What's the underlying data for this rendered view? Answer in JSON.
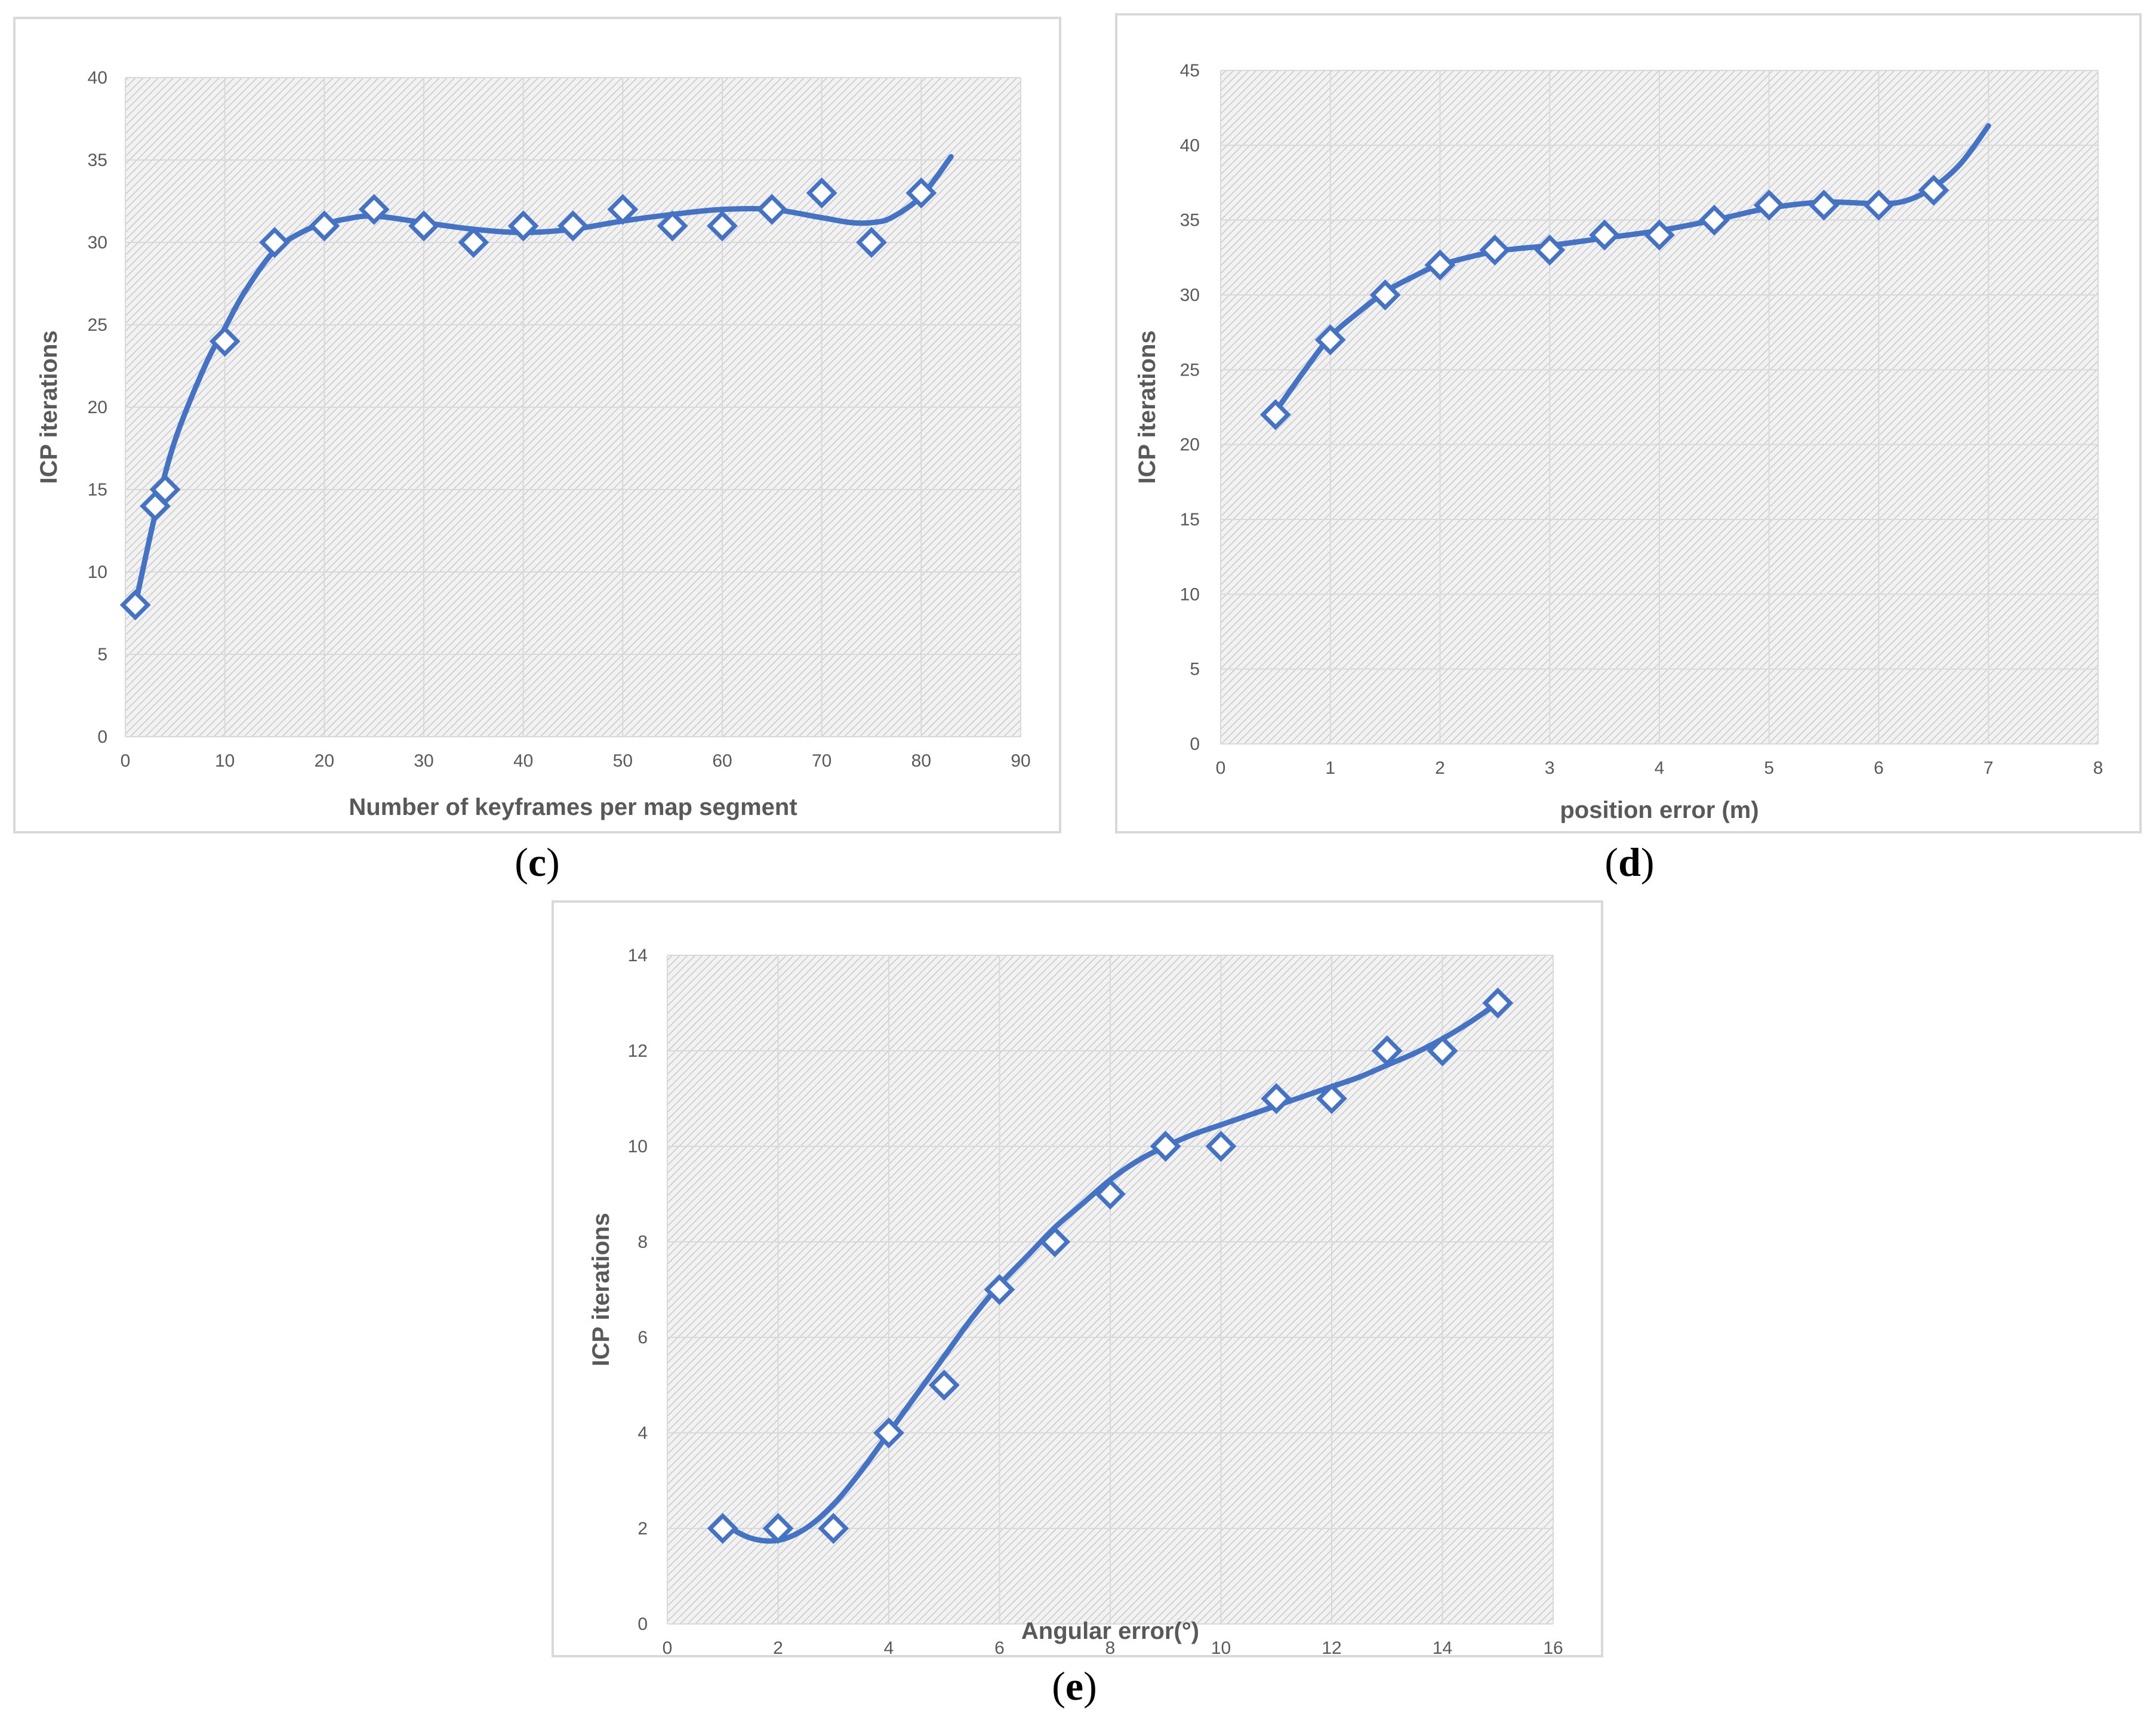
{
  "chart_data": [
    {
      "id": "c",
      "panel_label": "c",
      "type": "scatter",
      "xlabel": "Number of keyframes per map segment",
      "ylabel": "ICP iterations",
      "xlim": [
        0,
        90
      ],
      "ylim": [
        0,
        40
      ],
      "xticks": [
        0,
        10,
        20,
        30,
        40,
        50,
        60,
        70,
        80,
        90
      ],
      "yticks": [
        0,
        5,
        10,
        15,
        20,
        25,
        30,
        35,
        40
      ],
      "series": [
        {
          "name": "ICP iterations",
          "x": [
            1,
            3,
            4,
            10,
            15,
            20,
            25,
            30,
            35,
            40,
            45,
            50,
            55,
            60,
            65,
            70,
            75,
            80
          ],
          "y": [
            8,
            14,
            15,
            24,
            30,
            31,
            32,
            31,
            30,
            31,
            31,
            32,
            31,
            31,
            32,
            33,
            30,
            33
          ]
        }
      ],
      "trendline": {
        "x": [
          1,
          3,
          5,
          8,
          10,
          12,
          15,
          18,
          20,
          22,
          25,
          30,
          35,
          40,
          45,
          50,
          55,
          60,
          65,
          70,
          73,
          75,
          77,
          80,
          83
        ],
        "y": [
          8,
          13.5,
          18,
          22.5,
          24.8,
          27,
          29.5,
          30.7,
          31.1,
          31.4,
          31.6,
          31.2,
          30.8,
          30.6,
          30.8,
          31.3,
          31.7,
          32,
          32,
          31.5,
          31.2,
          31.2,
          31.5,
          32.8,
          35.2
        ]
      },
      "color": "#4472c4"
    },
    {
      "id": "d",
      "panel_label": "d",
      "type": "scatter",
      "xlabel": "position error (m)",
      "ylabel": "ICP iterations",
      "xlim": [
        0,
        8
      ],
      "ylim": [
        0,
        45
      ],
      "xticks": [
        0,
        1,
        2,
        3,
        4,
        5,
        6,
        7,
        8
      ],
      "yticks": [
        0,
        5,
        10,
        15,
        20,
        25,
        30,
        35,
        40,
        45
      ],
      "series": [
        {
          "name": "ICP iterations",
          "x": [
            0.5,
            1,
            1.5,
            2,
            2.5,
            3,
            3.5,
            4,
            4.5,
            5,
            5.5,
            6,
            6.5
          ],
          "y": [
            22,
            27,
            30,
            32,
            33,
            33,
            34,
            34,
            35,
            36,
            36,
            36,
            37
          ]
        }
      ],
      "trendline": {
        "x": [
          0.5,
          0.75,
          1,
          1.25,
          1.5,
          1.75,
          2,
          2.5,
          3,
          3.5,
          4,
          4.5,
          5,
          5.5,
          6,
          6.25,
          6.5,
          6.75,
          7
        ],
        "y": [
          22.2,
          24.8,
          27.2,
          28.8,
          30.2,
          31.2,
          32,
          32.9,
          33.3,
          33.8,
          34.3,
          35,
          35.8,
          36.2,
          36.1,
          36.3,
          37.2,
          38.8,
          41.3
        ]
      },
      "color": "#4472c4"
    },
    {
      "id": "e",
      "panel_label": "e",
      "type": "scatter",
      "xlabel": "Angular error(°)",
      "ylabel": "ICP iterations",
      "xlim": [
        0,
        16
      ],
      "ylim": [
        0,
        14
      ],
      "xticks": [
        0,
        2,
        4,
        6,
        8,
        10,
        12,
        14,
        16
      ],
      "yticks": [
        0,
        2,
        4,
        6,
        8,
        10,
        12,
        14
      ],
      "series": [
        {
          "name": "ICP iterations",
          "x": [
            1,
            2,
            3,
            4,
            5,
            6,
            7,
            8,
            9,
            10,
            11,
            12,
            13,
            14,
            15
          ],
          "y": [
            2,
            2,
            2,
            4,
            5,
            7,
            8,
            9,
            10,
            10,
            11,
            11,
            12,
            12,
            13
          ]
        }
      ],
      "trendline": {
        "x": [
          1,
          1.5,
          2,
          2.5,
          3,
          3.5,
          4,
          4.5,
          5,
          5.5,
          6,
          6.5,
          7,
          7.5,
          8,
          8.5,
          9,
          9.5,
          10,
          10.5,
          11,
          11.5,
          12,
          12.5,
          13,
          13.5,
          14,
          14.5,
          15
        ],
        "y": [
          2.1,
          1.8,
          1.75,
          2.0,
          2.5,
          3.2,
          4.0,
          4.8,
          5.6,
          6.4,
          7.1,
          7.7,
          8.3,
          8.8,
          9.3,
          9.7,
          10.0,
          10.25,
          10.45,
          10.65,
          10.85,
          11.05,
          11.25,
          11.45,
          11.7,
          11.95,
          12.25,
          12.6,
          13.0
        ]
      },
      "color": "#4472c4"
    }
  ]
}
